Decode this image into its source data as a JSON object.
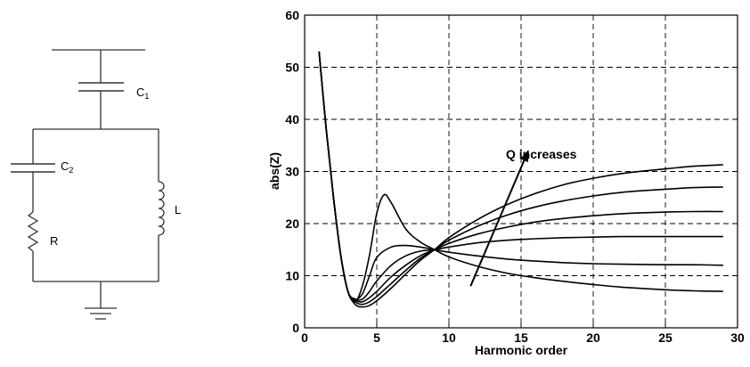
{
  "circuit": {
    "labels": {
      "c1": "C",
      "c1_sub": "1",
      "c2": "C",
      "c2_sub": "2",
      "r": "R",
      "l": "L"
    }
  },
  "chart_data": {
    "type": "line",
    "xlabel": "Harmonic order",
    "ylabel": "abs(Z)",
    "xlim": [
      0,
      30
    ],
    "ylim": [
      0,
      60
    ],
    "xticks": [
      0,
      5,
      10,
      15,
      20,
      25,
      30
    ],
    "yticks": [
      0,
      10,
      20,
      30,
      40,
      50,
      60
    ],
    "grid": "dashed",
    "annotation": {
      "text": "Q increases",
      "arrow_from": [
        11.5,
        8
      ],
      "arrow_to": [
        15.5,
        34
      ]
    },
    "series": [
      {
        "x": [
          1,
          1.5,
          2,
          2.5,
          3,
          3.5,
          4,
          4.5,
          5,
          5.5,
          6,
          7,
          8,
          9,
          10,
          12,
          14,
          16,
          18,
          20,
          22,
          25,
          27,
          29
        ],
        "values": [
          53,
          38,
          25,
          14,
          7,
          5,
          8,
          14,
          22,
          25.5,
          24,
          19,
          16.5,
          15,
          13.6,
          11.8,
          10.5,
          9.6,
          8.9,
          8.3,
          7.8,
          7.3,
          7.1,
          7
        ]
      },
      {
        "x": [
          1,
          1.5,
          2,
          2.5,
          3,
          3.5,
          4,
          4.5,
          5,
          6,
          7,
          8,
          9,
          10,
          12,
          14,
          16,
          18,
          20,
          22,
          25,
          27,
          29
        ],
        "values": [
          53,
          38,
          25,
          14,
          7,
          5.5,
          6.5,
          10,
          13.5,
          15.5,
          15.8,
          15.5,
          15,
          14.5,
          13.8,
          13.2,
          12.8,
          12.5,
          12.3,
          12.2,
          12.1,
          12.1,
          12
        ]
      },
      {
        "x": [
          1,
          1.5,
          2,
          2.5,
          3,
          3.5,
          4,
          4.5,
          5,
          6,
          7,
          8,
          9,
          10,
          12,
          14,
          16,
          18,
          20,
          22,
          25,
          27,
          29
        ],
        "values": [
          53,
          38,
          25,
          14,
          7,
          5.5,
          5.5,
          7,
          9,
          12,
          13.8,
          14.7,
          15,
          15.5,
          16.3,
          16.8,
          17.1,
          17.3,
          17.4,
          17.5,
          17.5,
          17.5,
          17.5
        ]
      },
      {
        "x": [
          1,
          1.5,
          2,
          2.5,
          3,
          3.5,
          4,
          4.5,
          5,
          6,
          7,
          8,
          9,
          10,
          12,
          14,
          16,
          18,
          20,
          22,
          25,
          27,
          29
        ],
        "values": [
          53,
          38,
          25,
          14,
          7,
          5.3,
          5,
          5.8,
          7,
          9.8,
          12,
          13.8,
          15,
          16.2,
          18,
          19.3,
          20.3,
          21,
          21.5,
          21.9,
          22.2,
          22.3,
          22.3
        ]
      },
      {
        "x": [
          1,
          1.5,
          2,
          2.5,
          3,
          3.5,
          4,
          4.5,
          5,
          6,
          7,
          8,
          9,
          10,
          12,
          14,
          16,
          18,
          20,
          22,
          25,
          27,
          29
        ],
        "values": [
          53,
          38,
          25,
          14,
          7,
          5,
          4.5,
          5,
          6,
          8.5,
          11,
          13.3,
          15,
          16.8,
          19.5,
          21.6,
          23.2,
          24.4,
          25.3,
          26,
          26.6,
          26.9,
          27
        ]
      },
      {
        "x": [
          1,
          1.5,
          2,
          2.5,
          3,
          3.5,
          4,
          4.5,
          5,
          6,
          7,
          8,
          9,
          10,
          12,
          14,
          16,
          18,
          20,
          22,
          25,
          27,
          29
        ],
        "values": [
          53,
          38,
          25,
          14,
          7,
          4.5,
          4,
          4.3,
          5.2,
          7.6,
          10.3,
          12.9,
          15,
          17.3,
          20.8,
          23.6,
          25.8,
          27.5,
          28.7,
          29.6,
          30.5,
          31,
          31.3
        ]
      }
    ]
  }
}
